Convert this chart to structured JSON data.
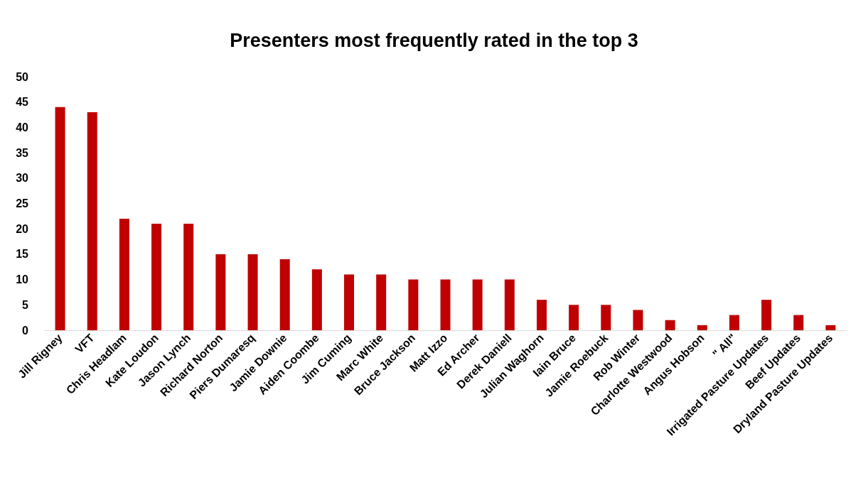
{
  "chart_data": {
    "type": "bar",
    "title": "Presenters most frequently rated in the top 3",
    "categories": [
      "Jill Rigney",
      "VFT",
      "Chris Headlam",
      "Kate Loudon",
      "Jason Lynch",
      "Richard Norton",
      "Piers Dumaresq",
      "Jamie Downie",
      "Aiden Coombe",
      "Jim Cuming",
      "Marc White",
      "Bruce Jackson",
      "Matt Izzo",
      "Ed Archer",
      "Derek Daniell",
      "Julian Waghorn",
      "Iain Bruce",
      "Jamie Roebuck",
      "Rob Winter",
      "Charlotte Westwood",
      "Angus Hobson",
      "\" All\"",
      "Irrigated Pasture Updates",
      "Beef Updates",
      "Dryland Pasture Updates"
    ],
    "values": [
      44,
      43,
      22,
      21,
      21,
      15,
      15,
      14,
      12,
      11,
      11,
      10,
      10,
      10,
      10,
      6,
      5,
      5,
      4,
      2,
      1,
      3,
      6,
      3,
      1
    ],
    "color": "#c00000",
    "ylim": [
      0,
      50
    ],
    "yticks": [
      0,
      5,
      10,
      15,
      20,
      25,
      30,
      35,
      40,
      45,
      50
    ],
    "grid": false
  }
}
